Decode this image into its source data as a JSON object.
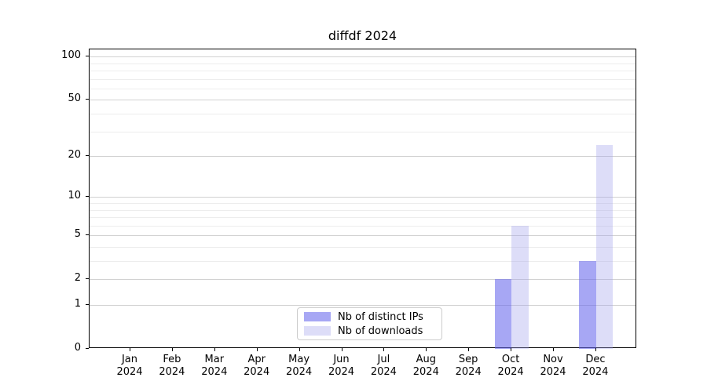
{
  "title": "diffdf 2024",
  "legend": {
    "position": "lower center",
    "items": [
      {
        "label": "Nb of distinct IPs"
      },
      {
        "label": "Nb of downloads"
      }
    ]
  },
  "colors": {
    "distinct_ips_bar": "#a5a5f3",
    "downloads_bar": "#dcdcf8",
    "distinct_ips_fill": "rgba(100,100,235,0.57)",
    "downloads_fill": "rgba(160,160,235,0.36)",
    "major_grid": "#d2d2d2",
    "minor_grid": "#ededed",
    "spine": "#000000"
  },
  "chart_data": {
    "type": "bar",
    "title": "diffdf 2024",
    "xlabel": "",
    "ylabel": "",
    "year": "2024",
    "categories": [
      "Jan",
      "Feb",
      "Mar",
      "Apr",
      "May",
      "Jun",
      "Jul",
      "Aug",
      "Sep",
      "Oct",
      "Nov",
      "Dec"
    ],
    "series": [
      {
        "name": "Nb of distinct IPs",
        "color": "#a5a5f3",
        "fill": "rgba(100,100,235,0.57)",
        "values": [
          0,
          0,
          0,
          0,
          0,
          0,
          0,
          0,
          0,
          2,
          0,
          3
        ]
      },
      {
        "name": "Nb of downloads",
        "color": "#dcdcf8",
        "fill": "rgba(160,160,235,0.36)",
        "values": [
          0,
          0,
          0,
          0,
          0,
          0,
          0,
          0,
          0,
          6,
          0,
          24
        ]
      }
    ],
    "y_scale": "log10(1+x)",
    "y_major_ticks": [
      0,
      1,
      2,
      5,
      10,
      20,
      50,
      100
    ],
    "y_minor_gridlines": [
      3,
      4,
      6,
      7,
      8,
      9,
      30,
      40,
      60,
      70,
      80,
      90
    ],
    "ylim": [
      0,
      112
    ],
    "grid": true,
    "legend_position": "lower center"
  }
}
